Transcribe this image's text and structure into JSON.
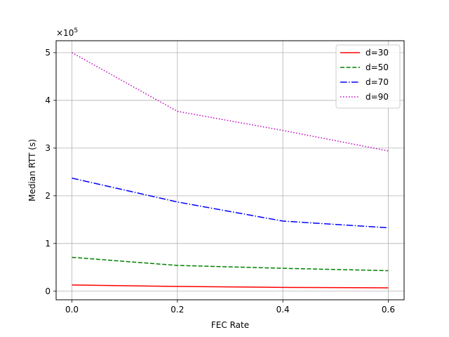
{
  "chart_data": {
    "type": "line",
    "title": "",
    "xlabel": "FEC Rate",
    "ylabel": "Median RTT (s)",
    "y_multiplier_label": "×10",
    "y_multiplier_exponent": "5",
    "xlim": [
      -0.03,
      0.63
    ],
    "ylim": [
      -0.18,
      5.25
    ],
    "x_ticks": [
      0.0,
      0.2,
      0.4,
      0.6
    ],
    "x_tick_labels": [
      "0.0",
      "0.2",
      "0.4",
      "0.6"
    ],
    "y_ticks": [
      0,
      1,
      2,
      3,
      4,
      5
    ],
    "y_tick_labels": [
      "0",
      "1",
      "2",
      "3",
      "4",
      "5"
    ],
    "grid": true,
    "legend_position": "top-right",
    "x": [
      0.0,
      0.2,
      0.4,
      0.6
    ],
    "series": [
      {
        "name": "d=30",
        "values": [
          0.13,
          0.1,
          0.08,
          0.07
        ],
        "color": "#ff0000",
        "style": "solid"
      },
      {
        "name": "d=50",
        "values": [
          0.71,
          0.54,
          0.48,
          0.43
        ],
        "color": "#008000",
        "style": "dashed"
      },
      {
        "name": "d=70",
        "values": [
          2.37,
          1.87,
          1.47,
          1.33
        ],
        "color": "#0000ff",
        "style": "dashdot"
      },
      {
        "name": "d=90",
        "values": [
          5.0,
          3.77,
          3.37,
          2.94
        ],
        "color": "#bf00bf",
        "style": "dotted"
      }
    ]
  }
}
